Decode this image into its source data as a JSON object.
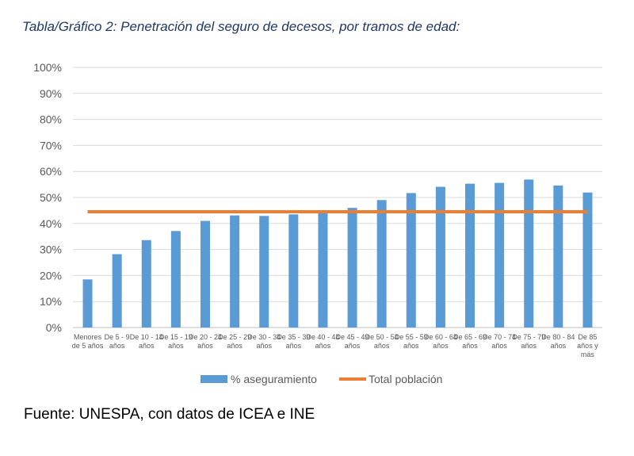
{
  "title": "Tabla/Gráfico 2: Penetración del seguro de decesos, por tramos de edad:",
  "source": "Fuente: UNESPA, con datos de ICEA e INE",
  "chart_data": {
    "type": "bar",
    "categories": [
      [
        "Menores",
        "de 5 años"
      ],
      [
        "De 5 - 9",
        "años"
      ],
      [
        "De 10 - 14",
        "años"
      ],
      [
        "De 15 - 19",
        "años"
      ],
      [
        "De 20 - 24",
        "años"
      ],
      [
        "De 25 - 29",
        "años"
      ],
      [
        "De 30 - 34",
        "años"
      ],
      [
        "De 35 - 39",
        "años"
      ],
      [
        "De 40 - 44",
        "años"
      ],
      [
        "De 45 - 49",
        "años"
      ],
      [
        "De 50 - 54",
        "años"
      ],
      [
        "De 55 - 59",
        "años"
      ],
      [
        "De 60 - 64",
        "años"
      ],
      [
        "De 65 - 69",
        "años"
      ],
      [
        "De 70 - 74",
        "años"
      ],
      [
        "De 75 - 79",
        "años"
      ],
      [
        "De 80 - 84",
        "años"
      ],
      [
        "De 85",
        "años y",
        "más"
      ]
    ],
    "series": [
      {
        "name": "% aseguramiento",
        "type": "bar",
        "color": "#5b9bd5",
        "values": [
          18.5,
          28.2,
          33.6,
          37.1,
          41.0,
          43.1,
          42.9,
          43.5,
          44.6,
          46.0,
          49.0,
          51.7,
          54.1,
          55.3,
          55.6,
          56.9,
          54.6,
          51.9
        ]
      },
      {
        "name": "Total población",
        "type": "line",
        "color": "#ed7d31",
        "values": [
          44.5,
          44.5,
          44.5,
          44.5,
          44.5,
          44.5,
          44.5,
          44.5,
          44.5,
          44.5,
          44.5,
          44.5,
          44.5,
          44.5,
          44.5,
          44.5,
          44.5,
          44.5
        ]
      }
    ],
    "yticks": [
      "0%",
      "10%",
      "20%",
      "30%",
      "40%",
      "50%",
      "60%",
      "70%",
      "80%",
      "90%",
      "100%"
    ],
    "ylim": [
      0,
      100
    ],
    "grid": true,
    "legend": "bottom"
  }
}
